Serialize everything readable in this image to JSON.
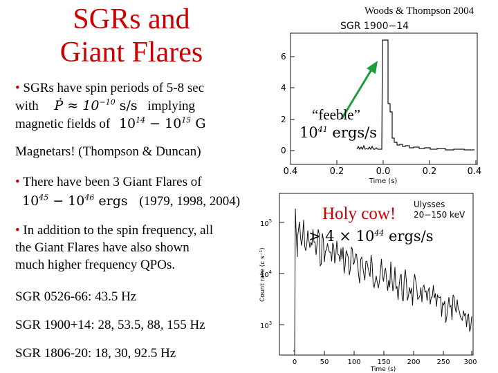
{
  "title_line1": "SGRs and",
  "title_line2": "Giant Flares",
  "credit": "Woods & Thompson 2004",
  "bullet_symbol": "•",
  "b1_line1": "SGRs have spin periods of 5-8 sec",
  "b1_with": "with",
  "b1_pdot": "Ṗ ≈ 10",
  "b1_pdot_exp": "−10",
  "b1_pdot_unit": "s/s",
  "b1_implying": "implying",
  "b1_line3_prefix": "magnetic fields of",
  "b1_field_base1": "10",
  "b1_field_exp1": "14",
  "b1_field_mid": " − 10",
  "b1_field_exp2": "15",
  "b1_field_unit": "G",
  "magnetars": "Magnetars! (Thompson & Duncan)",
  "b2_line1": "There have been 3 Giant Flares of",
  "b2_energy_base1": "10",
  "b2_energy_exp1": "45",
  "b2_energy_mid": " − 10",
  "b2_energy_exp2": "46",
  "b2_energy_unit": "ergs",
  "b2_years": "(1979, 1998, 2004)",
  "b3_line1": "In addition to the spin frequency,  all",
  "b3_line2": "the Giant Flares have also shown",
  "b3_line3": "much higher frequency QPOs.",
  "sgr_lines": [
    "SGR 0526-66: 43.5 Hz",
    "SGR 1900+14: 28, 53.5, 88, 155 Hz",
    "SGR 1806-20: 18, 30, 92.5 Hz"
  ],
  "plot_top": {
    "label": "SGR 1900−14",
    "xlabel": "Time (s)",
    "xticks": [
      "0.4",
      "0.2",
      "0.0",
      "0.2",
      "0.4"
    ],
    "yticks": [
      "0",
      "2",
      "4",
      "6"
    ],
    "feeble_text": "“feeble”",
    "feeble_energy_base": "10",
    "feeble_energy_exp": "41",
    "feeble_energy_unit": "ergs/s"
  },
  "plot_bottom": {
    "label_line1": "Ulysses",
    "label_line2": "20−150 keV",
    "xlabel": "Time (s)",
    "ylabel": "Count rate (c s⁻¹)",
    "xticks": [
      "0",
      "50",
      "100",
      "150",
      "200",
      "250",
      "300"
    ],
    "yticks_base": [
      "10",
      "10",
      "10"
    ],
    "yticks_exp": [
      "5",
      "4",
      "3"
    ],
    "holy_cow": "Holy cow!",
    "energy_prefix": "> 4 × 10",
    "energy_exp": "44",
    "energy_unit": "ergs/s"
  },
  "colors": {
    "title": "#cc0000",
    "bullet": "#cc0000",
    "arrow": "#1e9e3a",
    "plot": "#111111"
  }
}
